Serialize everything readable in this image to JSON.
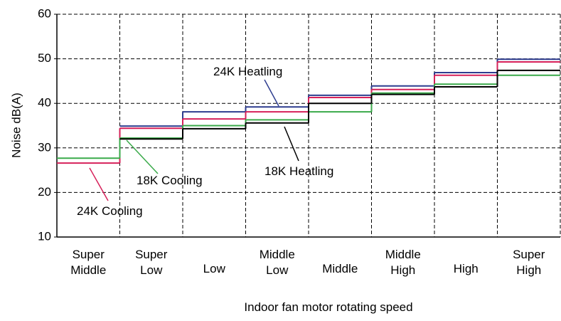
{
  "chart_data": {
    "type": "step",
    "x_label": "Indoor fan motor rotating speed",
    "y_label": "Noise dB(A)",
    "categories": [
      "Super Middle",
      "Super Low",
      "Low",
      "Middle Low",
      "Middle",
      "Middle High",
      "High",
      "Super High"
    ],
    "series": [
      {
        "name": "24K Heatling",
        "color": "#2e3d8f",
        "values": [
          null,
          34.9,
          38.1,
          39.2,
          41.8,
          43.9,
          46.9,
          49.9
        ]
      },
      {
        "name": "24K Cooling",
        "color": "#d6215a",
        "values": [
          26.6,
          34.4,
          36.5,
          38.1,
          41.3,
          43.1,
          46.3,
          49.3
        ]
      },
      {
        "name": "18K Cooling",
        "color": "#3aaa4a",
        "values": [
          27.7,
          32.2,
          35.0,
          36.3,
          38.1,
          42.3,
          44.3,
          46.3
        ]
      },
      {
        "name": "18K Heatling",
        "color": "#000000",
        "values": [
          null,
          32.0,
          34.3,
          35.6,
          40.0,
          42.0,
          43.7,
          47.4
        ]
      }
    ],
    "ylim": [
      10,
      60
    ],
    "yticks": [
      10,
      20,
      30,
      40,
      50,
      60
    ],
    "grid": true
  }
}
